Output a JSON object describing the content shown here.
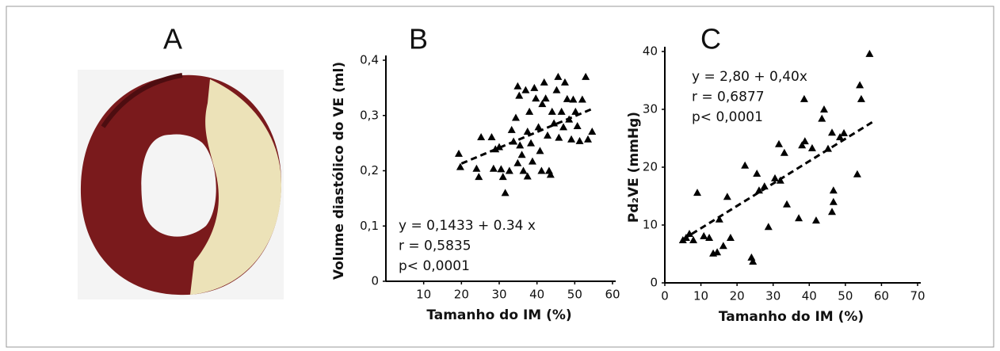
{
  "photo_panel": {
    "label": "A"
  },
  "chart_data": [
    {
      "type": "scatter",
      "title": "B",
      "x_label": "Tamanho do IM (%)",
      "y_label": "Volume diastólico do VE (ml)",
      "annotations": [
        "y = 0,1433 + 0.34 x",
        "r = 0,5835",
        "p< 0,0001"
      ],
      "xlim": [
        0,
        60
      ],
      "xticks": [
        10,
        20,
        30,
        40,
        50,
        60
      ],
      "ylim": [
        0,
        0.4
      ],
      "yticks": [
        0,
        {
          "value": 0.1,
          "label": "0,1"
        },
        {
          "value": 0.2,
          "label": "0,2"
        },
        {
          "value": 0.3,
          "label": "0,3"
        },
        {
          "value": 0.4,
          "label": "0,4"
        }
      ],
      "color": "#000000",
      "x": [
        19.3,
        19.7,
        24,
        24.6,
        25.2,
        28,
        28.5,
        29,
        30,
        30.5,
        31.6,
        31,
        32.7,
        33.3,
        33.8,
        34.4,
        34.9,
        35.3,
        35.5,
        36,
        36.4,
        37,
        37.5,
        38,
        38.4,
        38.8,
        39.3,
        39.7,
        40.4,
        40.8,
        41.2,
        41.4,
        41.9,
        42.3,
        42.8,
        43.2,
        43.6,
        44,
        44.5,
        45.2,
        45.6,
        45.8,
        46.5,
        47,
        47.4,
        48,
        48.5,
        49.1,
        49.6,
        50.2,
        50.7,
        51.3,
        52,
        52.9,
        53.5,
        54.6,
        37.5,
        34.9
      ],
      "values": [
        0.231,
        0.207,
        0.204,
        0.189,
        0.261,
        0.261,
        0.204,
        0.239,
        0.243,
        0.203,
        0.16,
        0.189,
        0.2,
        0.274,
        0.253,
        0.296,
        0.353,
        0.336,
        0.246,
        0.229,
        0.2,
        0.346,
        0.271,
        0.307,
        0.25,
        0.217,
        0.35,
        0.331,
        0.279,
        0.236,
        0.2,
        0.321,
        0.36,
        0.331,
        0.264,
        0.2,
        0.193,
        0.307,
        0.286,
        0.346,
        0.37,
        0.26,
        0.307,
        0.279,
        0.36,
        0.33,
        0.293,
        0.257,
        0.329,
        0.307,
        0.281,
        0.254,
        0.329,
        0.37,
        0.257,
        0.271,
        0.19,
        0.214
      ],
      "trend_line": {
        "x": [
          20,
          55
        ],
        "values": [
          0.213,
          0.313
        ]
      }
    },
    {
      "type": "scatter",
      "title": "C",
      "x_label": "Tamanho do IM (%)",
      "y_label": "Pd₂VE (mmHg)",
      "annotations": [
        "y = 2,80 + 0,40x",
        "r = 0,6877",
        "p< 0,0001"
      ],
      "xlim": [
        0,
        70
      ],
      "xticks": [
        0,
        10,
        20,
        30,
        40,
        50,
        60,
        70
      ],
      "ylim": [
        0,
        40
      ],
      "yticks": [
        0,
        10,
        20,
        30,
        40
      ],
      "color": "#000000",
      "x": [
        5,
        5.9,
        6.8,
        7.9,
        9,
        10.8,
        12.3,
        13.4,
        14.5,
        15.1,
        16.2,
        17.3,
        18.2,
        22.2,
        24,
        24.4,
        25.5,
        26.1,
        27.6,
        28.7,
        30.5,
        31.6,
        33.1,
        32,
        33.8,
        37.1,
        38,
        38.6,
        38.8,
        40.8,
        41.9,
        43.5,
        44.1,
        45.2,
        46.3,
        46.7,
        46.7,
        46.3,
        48.5,
        49.6,
        53.3,
        54,
        54.4,
        56.7
      ],
      "values": [
        7.4,
        7.8,
        8.5,
        7.4,
        15.6,
        8.1,
        7.8,
        5.1,
        5.3,
        11,
        6.4,
        14.9,
        7.8,
        20.3,
        4.4,
        3.7,
        18.9,
        16,
        16.7,
        9.7,
        18.1,
        24,
        22.5,
        17.7,
        13.6,
        11.2,
        23.8,
        31.8,
        24.5,
        23.3,
        10.8,
        28.4,
        30,
        23.2,
        26,
        16,
        14,
        12.3,
        25.2,
        25.9,
        18.8,
        34.2,
        31.8,
        39.6
      ],
      "trend_line": {
        "x": [
          5,
          58
        ],
        "values": [
          7.5,
          28
        ]
      }
    }
  ]
}
